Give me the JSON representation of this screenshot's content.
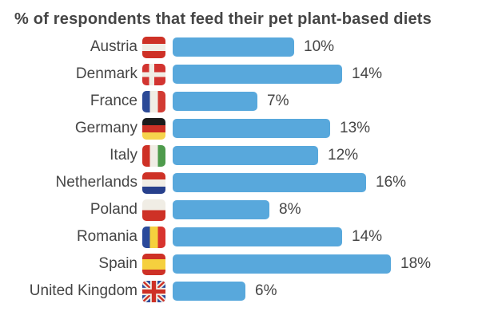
{
  "title": "% of respondents that feed their pet plant-based diets",
  "colors": {
    "bar": "#58A8DC",
    "text": "#454545"
  },
  "chart_data": {
    "type": "bar",
    "orientation": "horizontal",
    "title": "% of respondents that feed their pet plant-based diets",
    "categories": [
      "Austria",
      "Denmark",
      "France",
      "Germany",
      "Italy",
      "Netherlands",
      "Poland",
      "Romania",
      "Spain",
      "United Kingdom"
    ],
    "values": [
      10,
      14,
      7,
      13,
      12,
      16,
      8,
      14,
      18,
      6
    ],
    "value_labels": [
      "10%",
      "14%",
      "7%",
      "13%",
      "12%",
      "16%",
      "8%",
      "14%",
      "18%",
      "6%"
    ],
    "xlabel": "",
    "ylabel": "",
    "xlim": [
      0,
      20
    ],
    "grid": false,
    "legend": false,
    "bar_color": "#58A8DC",
    "row_icons": [
      "austria-flag-icon",
      "denmark-flag-icon",
      "france-flag-icon",
      "germany-flag-icon",
      "italy-flag-icon",
      "netherlands-flag-icon",
      "poland-flag-icon",
      "romania-flag-icon",
      "spain-flag-icon",
      "united-kingdom-flag-icon"
    ]
  },
  "rows": [
    {
      "label": "Austria",
      "value": 10,
      "value_label": "10%"
    },
    {
      "label": "Denmark",
      "value": 14,
      "value_label": "14%"
    },
    {
      "label": "France",
      "value": 7,
      "value_label": "7%"
    },
    {
      "label": "Germany",
      "value": 13,
      "value_label": "13%"
    },
    {
      "label": "Italy",
      "value": 12,
      "value_label": "12%"
    },
    {
      "label": "Netherlands",
      "value": 16,
      "value_label": "16%"
    },
    {
      "label": "Poland",
      "value": 8,
      "value_label": "8%"
    },
    {
      "label": "Romania",
      "value": 14,
      "value_label": "14%"
    },
    {
      "label": "Spain",
      "value": 18,
      "value_label": "18%"
    },
    {
      "label": "United Kingdom",
      "value": 6,
      "value_label": "6%"
    }
  ]
}
